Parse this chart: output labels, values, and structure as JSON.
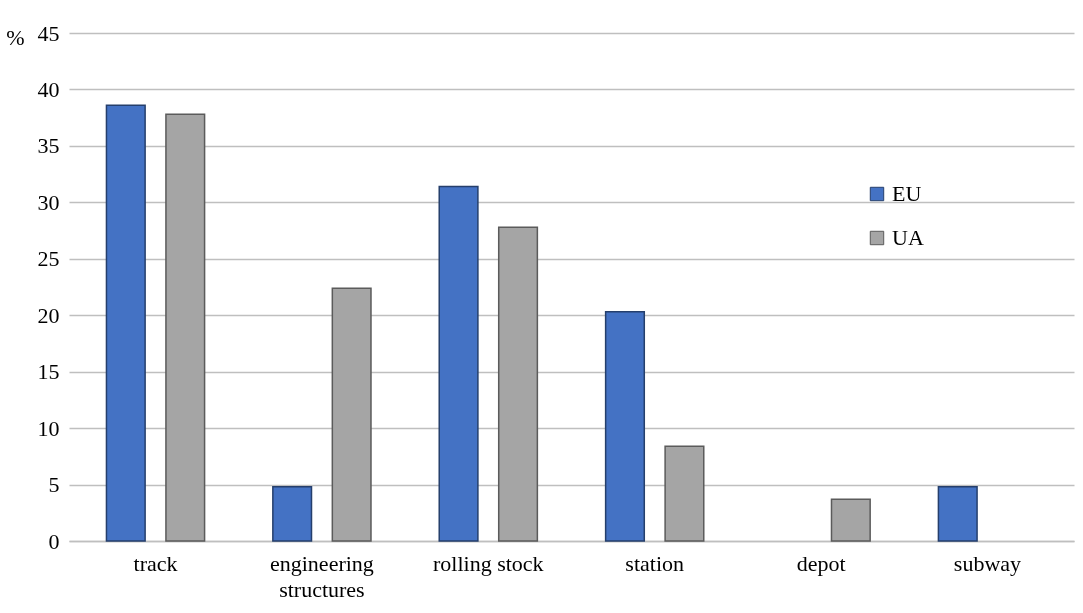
{
  "chart_data": {
    "type": "bar",
    "ylabel": "%",
    "categories": [
      "track",
      "engineering structures",
      "rolling stock",
      "station",
      "depot",
      "subway"
    ],
    "series": [
      {
        "name": "EU",
        "color": "#4472c4",
        "values": [
          38.6,
          4.8,
          31.4,
          20.3,
          null,
          4.8
        ]
      },
      {
        "name": "UA",
        "color": "#a5a5a5",
        "values": [
          37.8,
          22.4,
          27.8,
          8.4,
          3.7,
          null
        ]
      }
    ],
    "ylim": [
      0,
      45
    ],
    "yticks": [
      0,
      5,
      10,
      15,
      20,
      25,
      30,
      35,
      40,
      45
    ],
    "grid": "y",
    "legend": "top right"
  }
}
